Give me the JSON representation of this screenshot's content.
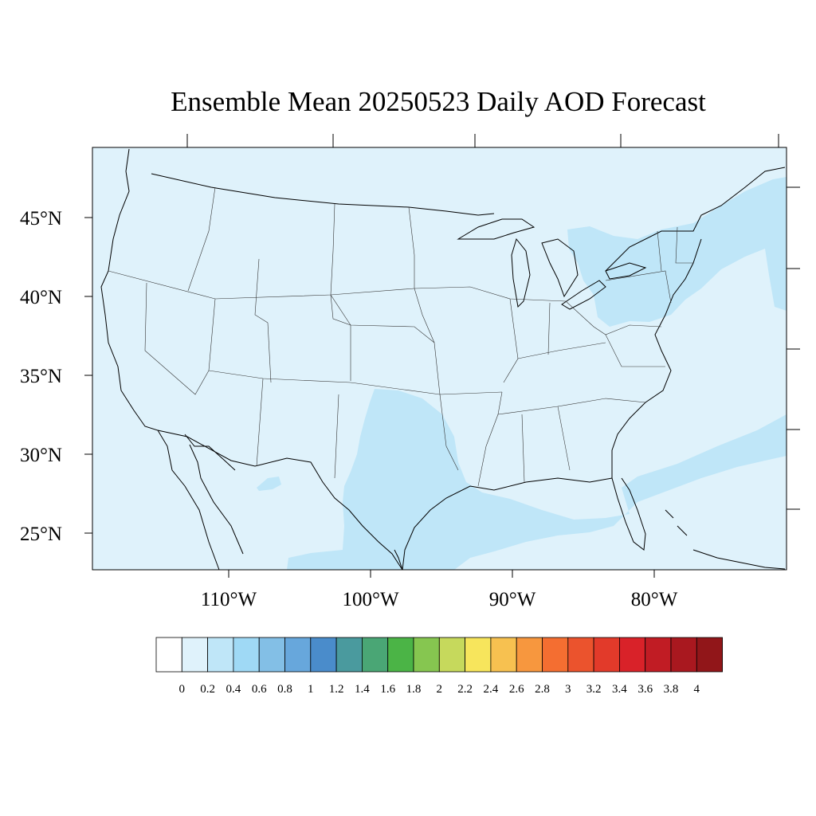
{
  "title": "Ensemble Mean 20250523 Daily AOD Forecast",
  "map": {
    "lat_labels": [
      "45°N",
      "40°N",
      "35°N",
      "30°N",
      "25°N"
    ],
    "lon_labels": [
      "110°W",
      "100°W",
      "90°W",
      "80°W"
    ],
    "background_color": "#dff2fb",
    "enhanced_color": "#bfe6f8",
    "border_color": "#000000"
  },
  "colorbar": {
    "labels": [
      "0",
      "0.2",
      "0.4",
      "0.6",
      "0.8",
      "1",
      "1.2",
      "1.4",
      "1.6",
      "1.8",
      "2",
      "2.2",
      "2.4",
      "2.6",
      "2.8",
      "3",
      "3.2",
      "3.4",
      "3.6",
      "3.8",
      "4"
    ],
    "colors": [
      "#ffffff",
      "#dff2fb",
      "#bfe6f8",
      "#9fd9f5",
      "#83bfe6",
      "#67a7dc",
      "#4a8ccb",
      "#4a9a9e",
      "#4aa675",
      "#4bb446",
      "#86c650",
      "#c6d95c",
      "#f7e55c",
      "#f7c150",
      "#f7973e",
      "#f46e31",
      "#eb532d",
      "#e23a2a",
      "#d92229",
      "#c11c24",
      "#a9181f",
      "#911619"
    ]
  }
}
